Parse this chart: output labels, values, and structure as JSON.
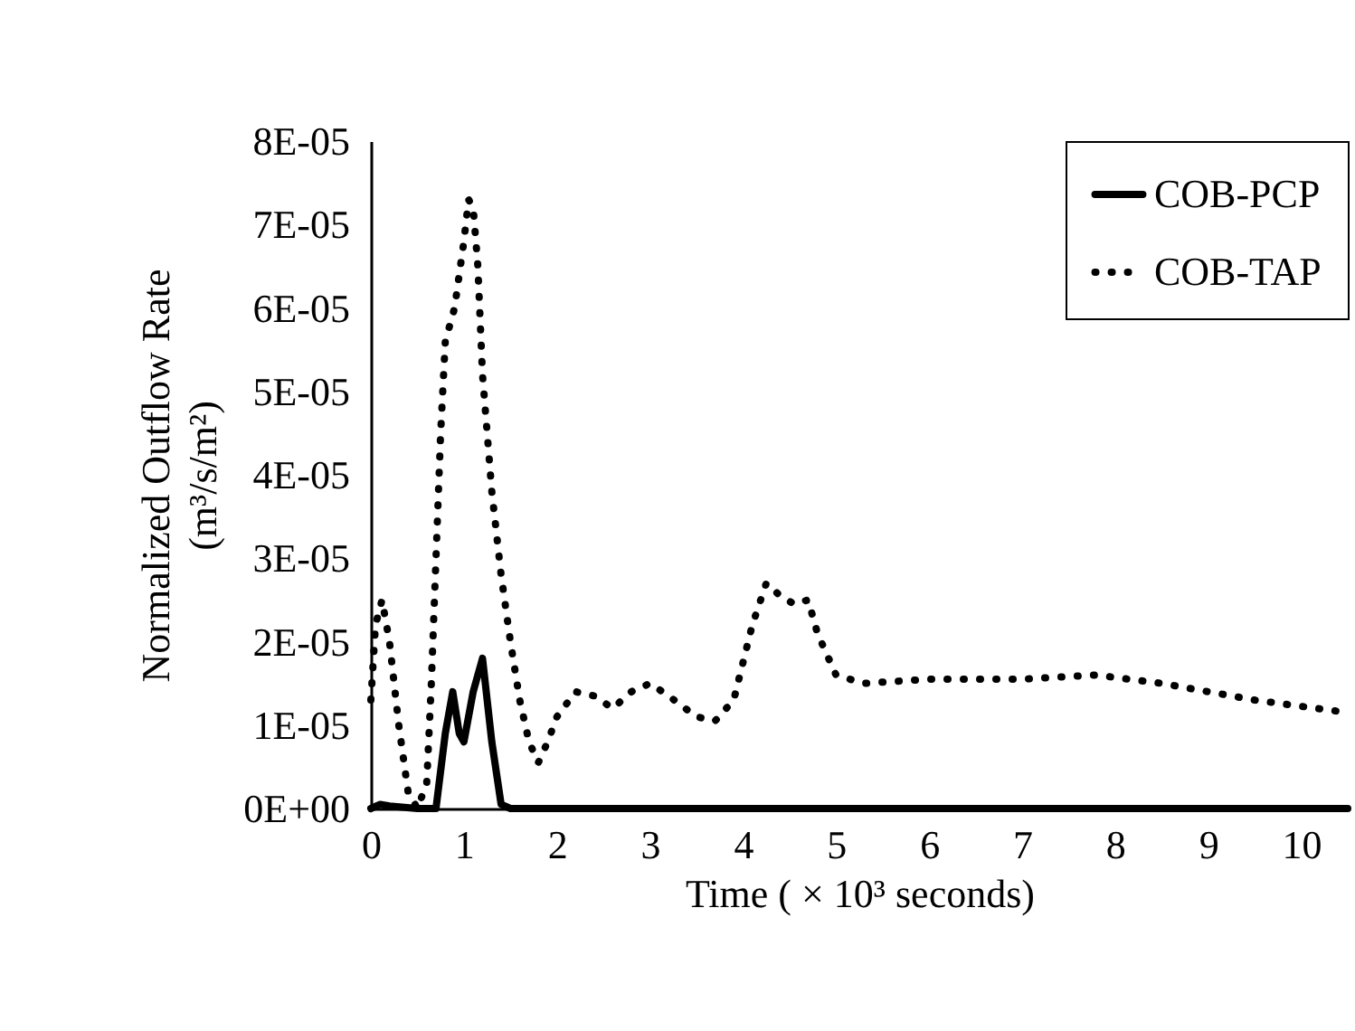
{
  "chart_data": {
    "type": "line",
    "xlabel": "Time ( × 10³ seconds)",
    "ylabel": "Normalized Outflow Rate\n(m³/s/m²)",
    "x": [
      0,
      0.05,
      0.12,
      0.2,
      0.3,
      0.4,
      0.5,
      0.6,
      0.65,
      0.7,
      0.75,
      0.8,
      0.9,
      1.0,
      1.05,
      1.1,
      1.15,
      1.2,
      1.3,
      1.4,
      1.5,
      1.6,
      1.7,
      1.8,
      1.9,
      2.0,
      2.2,
      2.4,
      2.6,
      2.8,
      3.0,
      3.2,
      3.5,
      3.7,
      3.9,
      4.1,
      4.25,
      4.4,
      4.55,
      4.7,
      4.8,
      5.0,
      5.3,
      6.0,
      7.0,
      7.8,
      8.5,
      9.5,
      10.5
    ],
    "series": [
      {
        "name": "COB-PCP",
        "color": "#000000",
        "line_style": "solid",
        "x": [
          0,
          0.1,
          0.2,
          0.5,
          0.7,
          0.8,
          0.88,
          0.95,
          1.0,
          1.1,
          1.2,
          1.3,
          1.4,
          1.5,
          10.5
        ],
        "values": [
          0,
          5e-07,
          3e-07,
          0,
          0,
          9e-06,
          1.4e-05,
          9e-06,
          8e-06,
          1.4e-05,
          1.8e-05,
          8e-06,
          5e-07,
          0,
          0
        ]
      },
      {
        "name": "COB-TAP",
        "color": "#000000",
        "line_style": "dotted",
        "values": [
          1.3e-05,
          2.2e-05,
          2.5e-05,
          2e-05,
          1e-05,
          2e-06,
          0,
          3e-06,
          1.5e-05,
          3e-05,
          4.5e-05,
          5.6e-05,
          6e-05,
          6.8e-05,
          7.3e-05,
          7.2e-05,
          6.5e-05,
          5.2e-05,
          3.8e-05,
          2.8e-05,
          2e-05,
          1.3e-05,
          8e-06,
          5.5e-06,
          8e-06,
          1.1e-05,
          1.4e-05,
          1.35e-05,
          1.2e-05,
          1.4e-05,
          1.5e-05,
          1.35e-05,
          1.1e-05,
          1.05e-05,
          1.3e-05,
          2.2e-05,
          2.7e-05,
          2.55e-05,
          2.45e-05,
          2.5e-05,
          2.1e-05,
          1.6e-05,
          1.5e-05,
          1.55e-05,
          1.55e-05,
          1.6e-05,
          1.5e-05,
          1.3e-05,
          1.15e-05
        ]
      }
    ],
    "xlim": [
      0,
      10.5
    ],
    "xticks": [
      0,
      1,
      2,
      3,
      4,
      5,
      6,
      7,
      8,
      9,
      10
    ],
    "ylim": [
      0,
      8e-05
    ],
    "yticks": [
      {
        "value": 0,
        "label": "0E+00"
      },
      {
        "value": 1e-05,
        "label": "1E-05"
      },
      {
        "value": 2e-05,
        "label": "2E-05"
      },
      {
        "value": 3e-05,
        "label": "3E-05"
      },
      {
        "value": 4e-05,
        "label": "4E-05"
      },
      {
        "value": 5e-05,
        "label": "5E-05"
      },
      {
        "value": 6e-05,
        "label": "6E-05"
      },
      {
        "value": 7e-05,
        "label": "7E-05"
      },
      {
        "value": 8e-05,
        "label": "8E-05"
      }
    ],
    "grid": false,
    "legend": "top right",
    "marker": "none"
  }
}
